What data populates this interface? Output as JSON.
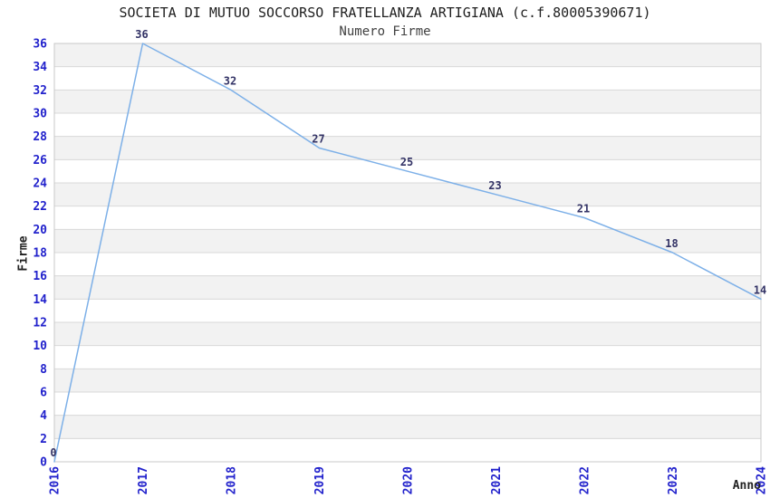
{
  "title": "SOCIETA DI MUTUO SOCCORSO FRATELLANZA ARTIGIANA (c.f.80005390671)",
  "subtitle": "Numero Firme",
  "chart_data": {
    "type": "line",
    "title": "SOCIETA DI MUTUO SOCCORSO FRATELLANZA ARTIGIANA (c.f.80005390671)",
    "subtitle": "Numero Firme",
    "xlabel": "Anno",
    "ylabel": "Firme",
    "x": [
      "2016",
      "2017",
      "2018",
      "2019",
      "2020",
      "2021",
      "2022",
      "2023",
      "2024"
    ],
    "series": [
      {
        "name": "Numero Firme",
        "values": [
          0,
          36,
          32,
          27,
          25,
          23,
          21,
          18,
          14
        ]
      }
    ],
    "data_labels_shown": true,
    "ylim": [
      0,
      36
    ],
    "ytick_step": 2,
    "grid": "horizontal alternating bands every 2 units",
    "legend_position": "none",
    "colors": {
      "line": "#7db0e8",
      "tick_label": "#2222cc",
      "data_label": "#333366",
      "band_gray": "#f2f2f2",
      "band_white": "#ffffff",
      "grid_line": "#d8d8d8",
      "plot_border": "#c8c8c8",
      "title_text": "#1f1f1f",
      "subtitle_text": "#404040",
      "axis_title_text": "#222222"
    }
  }
}
